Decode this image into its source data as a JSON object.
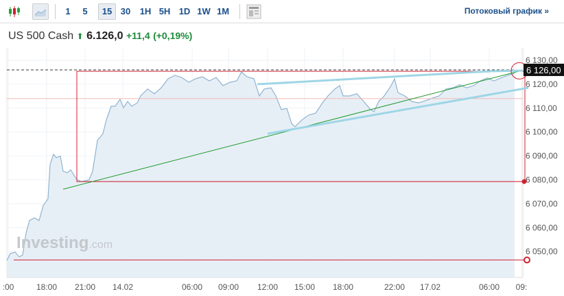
{
  "toolbar": {
    "intervals": [
      "1",
      "5",
      "15",
      "30",
      "1H",
      "5H",
      "1D",
      "1W",
      "1M"
    ],
    "active_interval": "15",
    "streaming_link": "Потоковый график »"
  },
  "quote": {
    "name": "US 500 Cash",
    "price": "6.126,0",
    "change": "+11,4",
    "change_pct": "(+0,19%)"
  },
  "watermark": {
    "brand": "Investing",
    "suffix": ".com"
  },
  "colors": {
    "accent": "#1a4f8a",
    "up": "#1f8a3a",
    "area": "#e3ecf5",
    "line": "#8fb3d1",
    "red": "#d0212f",
    "green": "#1d9a2b",
    "trend": "#9ed6e6"
  },
  "chart_data": {
    "type": "area",
    "title": "US 500 Cash",
    "ylim": [
      6042,
      6133
    ],
    "xlim": [
      0,
      752
    ],
    "y_ticks": [
      "6 130,00",
      "6 120,00",
      "6 110,00",
      "6 100,00",
      "6 090,00",
      "6 080,00",
      "6 070,00",
      "6 060,00",
      "6 050,00"
    ],
    "y_tick_values": [
      6130,
      6120,
      6110,
      6100,
      6090,
      6080,
      6070,
      6060,
      6050
    ],
    "current_price_label": "6 126,00",
    "current_price": 6126,
    "x_ticks": [
      {
        "label": ":00",
        "x": 2
      },
      {
        "label": "18:00",
        "x": 58
      },
      {
        "label": "21:00",
        "x": 114
      },
      {
        "label": "14.02",
        "x": 169
      },
      {
        "label": "06:00",
        "x": 270
      },
      {
        "label": "09:00",
        "x": 323
      },
      {
        "label": "12:00",
        "x": 380
      },
      {
        "label": "15:00",
        "x": 434
      },
      {
        "label": "18:00",
        "x": 490
      },
      {
        "label": "22:00",
        "x": 565
      },
      {
        "label": "17.02",
        "x": 617
      },
      {
        "label": "06:00",
        "x": 703
      },
      {
        "label": "09:",
        "x": 750
      }
    ],
    "series": [
      {
        "name": "US 500 Cash",
        "x": [
          0,
          5,
          12,
          18,
          23,
          28,
          33,
          40,
          47,
          53,
          60,
          63,
          68,
          72,
          78,
          82,
          88,
          93,
          98,
          102,
          108,
          115,
          120,
          125,
          132,
          140,
          145,
          152,
          158,
          165,
          170,
          176,
          182,
          190,
          195,
          205,
          215,
          225,
          235,
          245,
          255,
          265,
          275,
          285,
          295,
          305,
          315,
          325,
          335,
          342,
          350,
          360,
          368,
          375,
          385,
          392,
          400,
          408,
          415,
          420,
          430,
          440,
          450,
          460,
          468,
          478,
          485,
          490,
          500,
          510,
          520,
          530,
          535,
          542,
          550,
          560,
          565,
          570,
          580,
          590,
          600,
          610,
          620,
          630,
          640,
          650,
          660,
          670,
          680,
          690,
          700,
          710,
          720,
          730,
          740
        ],
        "y": [
          6046.3,
          6049.2,
          6049.8,
          6047.8,
          6048.6,
          6057.8,
          6063.0,
          6064.1,
          6063.0,
          6069.3,
          6072.1,
          6086.4,
          6090.7,
          6089.3,
          6089.9,
          6083.6,
          6083.0,
          6084.2,
          6081.9,
          6080.1,
          6079.3,
          6079.6,
          6080.1,
          6083.6,
          6096.5,
          6099.3,
          6105.1,
          6110.8,
          6110.8,
          6113.7,
          6110.2,
          6112.8,
          6110.8,
          6112.2,
          6115.1,
          6118.0,
          6116.0,
          6118.5,
          6122.3,
          6123.7,
          6122.8,
          6120.8,
          6122.3,
          6123.1,
          6121.4,
          6122.8,
          6119.4,
          6120.8,
          6121.4,
          6125.1,
          6123.1,
          6122.3,
          6115.1,
          6118.0,
          6118.5,
          6115.1,
          6109.4,
          6109.9,
          6103.6,
          6102.2,
          6105.1,
          6107.1,
          6107.9,
          6112.2,
          6115.1,
          6118.0,
          6119.4,
          6115.1,
          6115.1,
          6116.0,
          6112.8,
          6109.4,
          6108.5,
          6112.8,
          6115.1,
          6119.4,
          6122.3,
          6116.5,
          6115.1,
          6112.8,
          6112.2,
          6113.1,
          6114.2,
          6115.1,
          6118.0,
          6118.5,
          6119.7,
          6118.5,
          6119.4,
          6121.4,
          6122.6,
          6121.4,
          6122.6,
          6123.7,
          6124.6
        ]
      }
    ],
    "annotations": {
      "hlines": [
        {
          "y": 6126,
          "style": "dashed-black"
        },
        {
          "y": 6114,
          "style": "pink"
        },
        {
          "y": 6079.3,
          "style": "red",
          "x0": 102
        },
        {
          "y": 6046.5,
          "style": "red",
          "x0": 10
        }
      ],
      "rect": {
        "x0": 102,
        "x1": 755,
        "y0": 6079.3,
        "y1": 6125.4
      },
      "green_line": {
        "x0": 82,
        "y0": 6076.1,
        "x1": 750,
        "y1": 6125.7
      },
      "blue_lines": [
        {
          "x0": 365,
          "y0": 6120,
          "x1": 705,
          "y1": 6125.4
        },
        {
          "x0": 705,
          "y0": 6125.4,
          "x1": 752,
          "y1": 6125.7
        },
        {
          "x0": 380,
          "y0": 6099.3,
          "x1": 760,
          "y1": 6118.5
        }
      ],
      "circle": {
        "x": 747,
        "y": 6125.6
      }
    }
  }
}
